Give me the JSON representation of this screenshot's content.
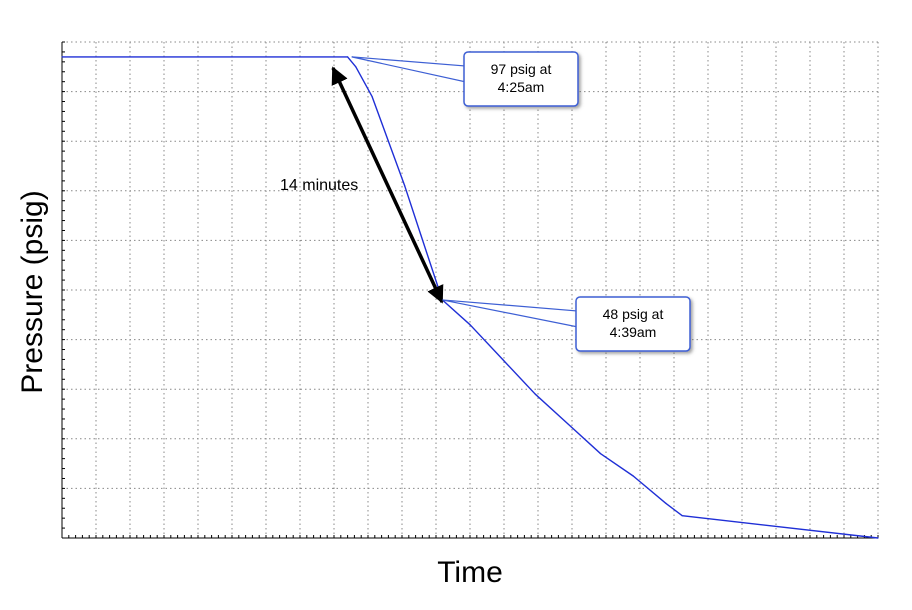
{
  "chart_data": {
    "type": "line",
    "xlabel": "Time",
    "ylabel": "Pressure (psig)",
    "grid": true,
    "xlim": [
      0,
      1
    ],
    "ylim": [
      0,
      100
    ],
    "series": [
      {
        "color": "#1f2fd6",
        "x": [
          0,
          0.35,
          0.36,
          0.38,
          0.4,
          0.42,
          0.44,
          0.466,
          0.5,
          0.54,
          0.58,
          0.62,
          0.66,
          0.7,
          0.74,
          0.76,
          1.0
        ],
        "values": [
          97,
          97,
          95,
          89,
          80,
          71,
          61,
          48,
          43,
          36,
          29,
          23,
          17,
          12.5,
          7,
          4.5,
          0
        ]
      }
    ],
    "annotations": [
      {
        "text_lines": [
          "97 psig at",
          "4:25am"
        ],
        "x": 0.355,
        "y": 97
      },
      {
        "text_lines": [
          "48 psig at",
          "4:39am"
        ],
        "x": 0.466,
        "y": 48
      }
    ],
    "duration_label": "14 minutes",
    "colors": {
      "line": "#1f2fd6",
      "callout_border": "#3d5fd4",
      "grid": "#888888"
    }
  }
}
